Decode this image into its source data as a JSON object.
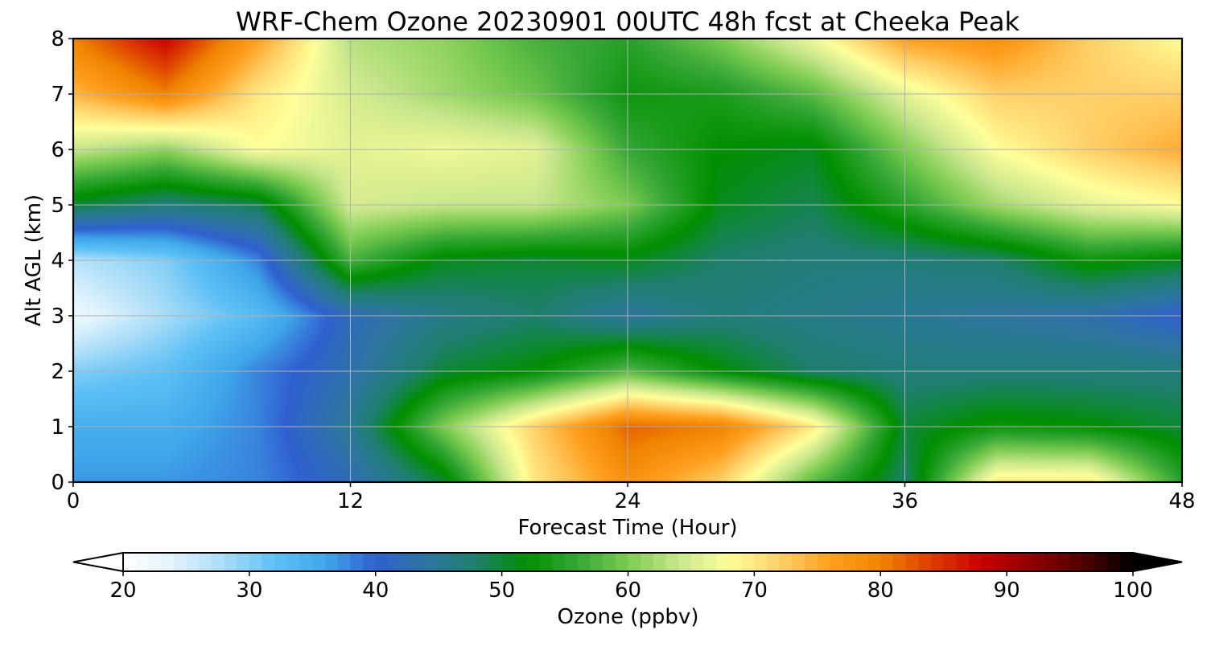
{
  "chart_data": {
    "type": "heatmap",
    "title": "WRF-Chem Ozone  20230901 00UTC 48h fcst at Cheeka Peak",
    "xlabel": "Forecast Time (Hour)",
    "ylabel": "Alt AGL (km)",
    "xlim": [
      0,
      48
    ],
    "ylim": [
      0,
      8
    ],
    "x_ticks": [
      0,
      12,
      24,
      36,
      48
    ],
    "y_ticks": [
      0,
      1,
      2,
      3,
      4,
      5,
      6,
      7,
      8
    ],
    "grid": true,
    "x": [
      0,
      4,
      8,
      12,
      16,
      20,
      24,
      28,
      32,
      36,
      40,
      44,
      48
    ],
    "y": [
      0,
      1,
      2,
      3,
      4,
      5,
      6,
      7,
      8
    ],
    "z": [
      [
        37,
        37,
        38,
        42,
        50,
        70,
        78,
        72,
        58,
        48,
        70,
        70,
        55
      ],
      [
        35,
        35,
        38,
        45,
        60,
        72,
        82,
        80,
        70,
        50,
        53,
        52,
        50
      ],
      [
        30,
        32,
        38,
        43,
        50,
        52,
        58,
        52,
        48,
        47,
        47,
        47,
        47
      ],
      [
        22,
        28,
        33,
        42,
        46,
        48,
        44,
        47,
        46,
        45,
        44,
        43,
        40
      ],
      [
        27,
        30,
        38,
        57,
        51,
        50,
        51,
        48,
        47,
        47,
        48,
        53,
        51
      ],
      [
        50,
        47,
        49,
        65,
        64,
        64,
        60,
        51,
        49,
        55,
        62,
        66,
        68
      ],
      [
        64,
        61,
        68,
        66,
        67,
        66,
        56,
        52,
        51,
        60,
        68,
        72,
        75
      ],
      [
        74,
        80,
        70,
        65,
        62,
        59,
        53,
        54,
        58,
        66,
        72,
        72,
        72
      ],
      [
        80,
        88,
        76,
        63,
        61,
        57,
        55,
        60,
        67,
        76,
        78,
        72,
        68
      ]
    ],
    "colorbar": {
      "label": "Ozone  (ppbv)",
      "min": 20,
      "max": 100,
      "ticks": [
        20,
        30,
        40,
        50,
        60,
        70,
        80,
        90,
        100
      ],
      "extend": "both",
      "orientation": "horizontal",
      "position": "bottom",
      "colors": [
        "#ffffff",
        "#e0f3fc",
        "#a8dcf8",
        "#5ec0f5",
        "#40a8ea",
        "#3060d0",
        "#2d75a0",
        "#1e7f6d",
        "#008f00",
        "#36a736",
        "#7ccc50",
        "#c8e68c",
        "#ffff9a",
        "#ffd068",
        "#ffa020",
        "#f08400",
        "#dd3e00",
        "#c80000",
        "#900000",
        "#500000",
        "#000000"
      ]
    }
  }
}
